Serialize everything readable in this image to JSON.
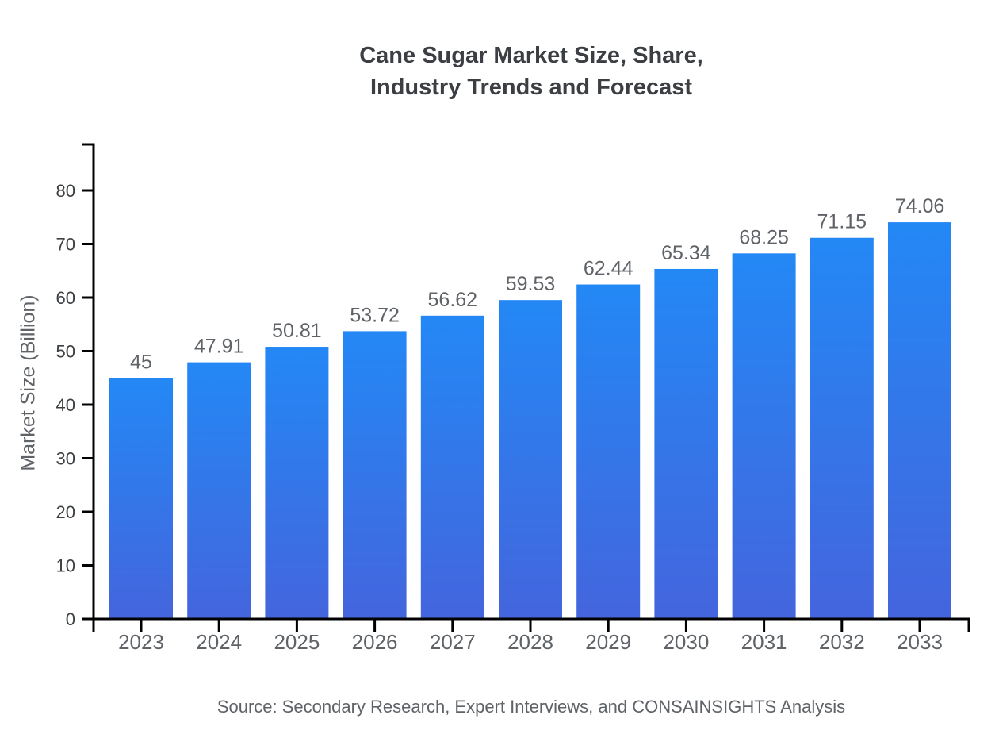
{
  "title": {
    "line1": "Cane Sugar Market Size, Share,",
    "line2": "Industry Trends and Forecast"
  },
  "footer": {
    "source_text": "Source: Secondary Research, Expert Interviews, and CONSAINSIGHTS Analysis"
  },
  "chart_data": {
    "type": "bar",
    "title": "Cane Sugar Market Size, Share, Industry Trends and Forecast",
    "categories": [
      "2023",
      "2024",
      "2025",
      "2026",
      "2027",
      "2028",
      "2029",
      "2030",
      "2031",
      "2032",
      "2033"
    ],
    "values": [
      45,
      47.91,
      50.81,
      53.72,
      56.62,
      59.53,
      62.44,
      65.34,
      68.25,
      71.15,
      74.06
    ],
    "value_labels": [
      "45",
      "47.91",
      "50.81",
      "53.72",
      "56.62",
      "59.53",
      "62.44",
      "65.34",
      "68.25",
      "71.15",
      "74.06"
    ],
    "xlabel": "",
    "ylabel": "Market Size (Billion)",
    "ylim": [
      0,
      88.9
    ],
    "yticks": [
      0,
      10,
      20,
      30,
      40,
      50,
      60,
      70,
      80
    ],
    "grid": false,
    "legend_position": "none",
    "bar_gradient": {
      "top": "#2388F5",
      "bottom": "#4465DD"
    },
    "colors": {
      "axis": "#000000",
      "ytick_label": "#3c4043",
      "xtick_label": "#5f6368",
      "value_label": "#5f6368",
      "title": "#3b3e42",
      "ylabel": "#5f6368",
      "source": "#5f6368"
    }
  }
}
